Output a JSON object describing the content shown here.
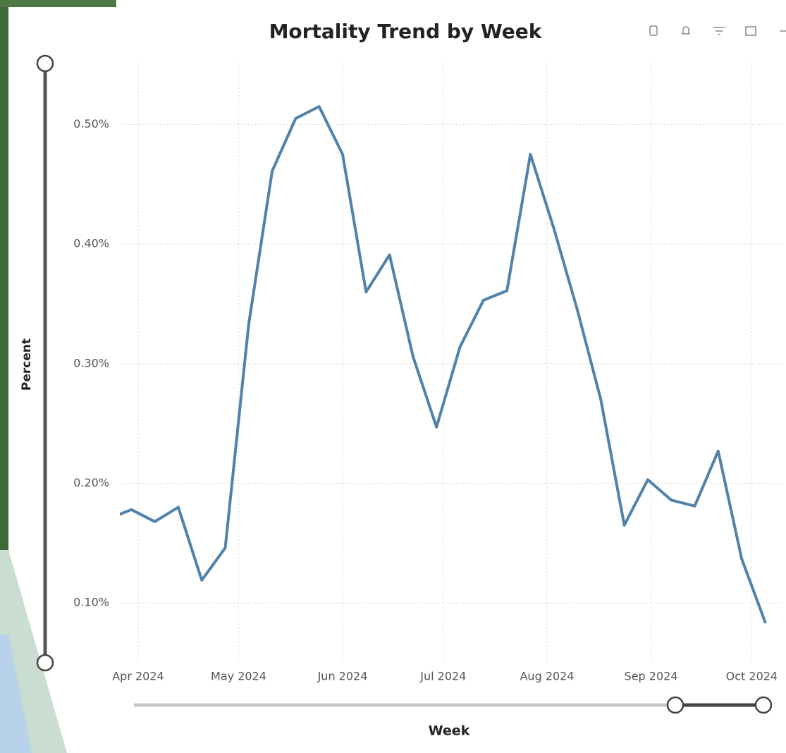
{
  "chart_data": {
    "type": "line",
    "title": "Mortality Trend by Week",
    "xlabel": "Week",
    "ylabel": "Percent",
    "categories": [
      null,
      null,
      null,
      null,
      null,
      null,
      null,
      null,
      null,
      null,
      null,
      null,
      null,
      null,
      null,
      null,
      null,
      null,
      null,
      null,
      null,
      null,
      null,
      null,
      null,
      null,
      null,
      null,
      null
    ],
    "values": [
      0.17,
      0.178,
      0.168,
      0.18,
      0.119,
      0.146,
      0.333,
      0.461,
      0.505,
      0.515,
      0.475,
      0.36,
      0.391,
      0.306,
      0.247,
      0.314,
      0.353,
      0.361,
      0.475,
      0.413,
      0.345,
      0.27,
      0.165,
      0.203,
      0.186,
      0.181,
      0.227,
      0.137,
      0.084
    ],
    "color": "#5082aa",
    "xlim": [
      0.57,
      28.74
    ],
    "xticks": [
      {
        "value": 1.29,
        "label": "Apr 2024"
      },
      {
        "value": 5.57,
        "label": "May 2024"
      },
      {
        "value": 10,
        "label": "Jun 2024"
      },
      {
        "value": 14.29,
        "label": "Jul 2024"
      },
      {
        "value": 18.71,
        "label": "Aug 2024"
      },
      {
        "value": 23.14,
        "label": "Sep 2024"
      },
      {
        "value": 27.43,
        "label": "Oct 2024"
      }
    ],
    "ylim": [
      0.05,
      0.551
    ],
    "yticks": [
      {
        "value": 0.1,
        "label": "0.10%"
      },
      {
        "value": 0.2,
        "label": "0.20%"
      },
      {
        "value": 0.3,
        "label": "0.30%"
      },
      {
        "value": 0.4,
        "label": "0.40%"
      },
      {
        "value": 0.5,
        "label": "0.50%"
      }
    ],
    "grid": true
  }
}
